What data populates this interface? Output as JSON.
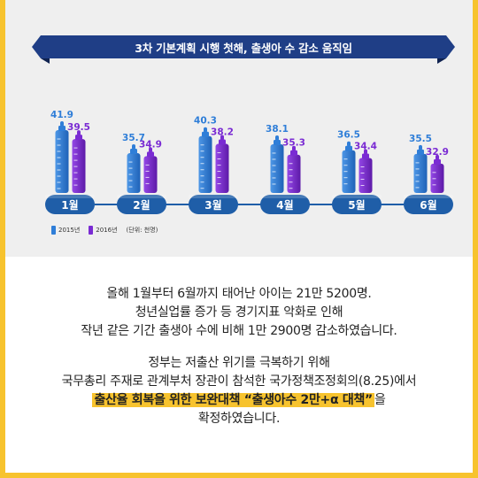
{
  "title": "3차 기본계획 시행 첫해, 출생아 수 감소 움직임",
  "legend": {
    "y2015": "2015년",
    "y2016": "2016년",
    "unit": "(단위: 천명)"
  },
  "colors": {
    "blue": "#2f7ed8",
    "purple": "#7a2bd3",
    "month_pill": "#1f5ea8",
    "border": "#f7c32e"
  },
  "chart_data": {
    "type": "bar",
    "categories": [
      "1월",
      "2월",
      "3월",
      "4월",
      "5월",
      "6월"
    ],
    "series": [
      {
        "name": "2015년",
        "values": [
          41.9,
          35.7,
          40.3,
          38.1,
          36.5,
          35.5
        ]
      },
      {
        "name": "2016년",
        "values": [
          39.5,
          34.9,
          38.2,
          35.3,
          34.4,
          32.9
        ]
      }
    ],
    "title": "3차 기본계획 시행 첫해, 출생아 수 감소 움직임",
    "unit": "(단위: 천명)",
    "legend_position": "bottom-left"
  },
  "text": {
    "p1_l1": "올해 1월부터 6월까지 태어난 아이는 21만 5200명.",
    "p1_l2": "청년실업률 증가 등 경기지표 악화로 인해",
    "p1_l3": "작년 같은 기간 출생아 수에 비해 1만 2900명 감소하였습니다.",
    "p2_l1": "정부는 저출산 위기를 극복하기 위해",
    "p2_l2": "국무총리 주재로 관계부처 장관이 참석한 국가정책조정회의(8.25)에서",
    "p2_l3_highlight": "출산율 회복을 위한 보완대책 “출생아수 2만+α 대책”",
    "p2_l3_rest": "을",
    "p2_l4": "확정하였습니다."
  }
}
